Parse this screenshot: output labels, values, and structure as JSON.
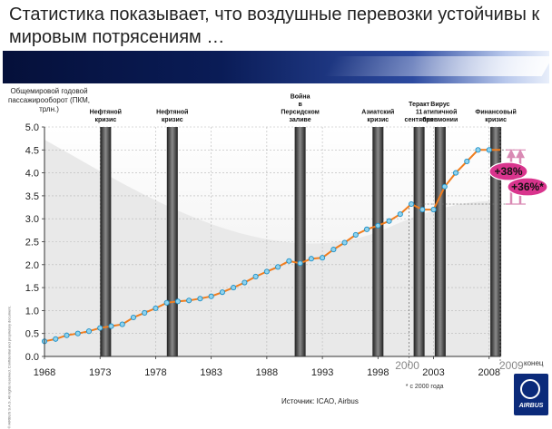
{
  "slide": {
    "title": "Статистика показывает, что воздушные перевозки устойчивы к мировым потрясениям …",
    "source": "Источник: ICAO, Airbus",
    "logo_text": "AIRBUS",
    "legal_text": "© AIRBUS S.A.S. All rights reserved. Confidential and proprietary document."
  },
  "colors": {
    "line": "#f07d1e",
    "marker_fill": "#8fd3ee",
    "marker_edge": "#1e8fc6",
    "bubble": "#d9348d",
    "arrow": "#d98ab4",
    "band_dark": "#2b2b2b",
    "plot_bg": "#e9e9e9"
  },
  "chart_data": {
    "type": "line",
    "ylabel": "Общемировой годовой пассажирооборот (ПКМ, трлн.)",
    "xlim": [
      1968,
      2009
    ],
    "ylim": [
      0,
      5.0
    ],
    "yticks": [
      "0.0",
      "0.5",
      "1.0",
      "1.5",
      "2.0",
      "2.5",
      "3.0",
      "3.5",
      "4.0",
      "4.5",
      "5.0"
    ],
    "xticks": [
      "1968",
      "1973",
      "1978",
      "1983",
      "1988",
      "1993",
      "1998",
      "2003",
      "2008"
    ],
    "grid": true,
    "series": [
      {
        "x": [
          1968,
          1969,
          1970,
          1971,
          1972,
          1973,
          1974,
          1975,
          1976,
          1977,
          1978,
          1979,
          1980,
          1981,
          1982,
          1983,
          1984,
          1985,
          1986,
          1987,
          1988,
          1989,
          1990,
          1991,
          1992,
          1993,
          1994,
          1995,
          1996,
          1997,
          1998,
          1999,
          2000,
          2001,
          2002,
          2003,
          2004,
          2005,
          2006,
          2007,
          2008
        ],
        "y": [
          0.33,
          0.38,
          0.46,
          0.5,
          0.55,
          0.62,
          0.66,
          0.7,
          0.85,
          0.95,
          1.05,
          1.17,
          1.2,
          1.22,
          1.26,
          1.31,
          1.4,
          1.5,
          1.61,
          1.74,
          1.85,
          1.95,
          2.08,
          2.03,
          2.13,
          2.15,
          2.33,
          2.48,
          2.65,
          2.77,
          2.85,
          2.95,
          3.1,
          3.32,
          3.2,
          3.2,
          3.7,
          4.0,
          4.25,
          4.5,
          4.5
        ]
      }
    ],
    "crises": [
      {
        "year": 1973.5,
        "label": "Нефтяной кризис"
      },
      {
        "year": 1979.5,
        "label": "Нефтяной кризис"
      },
      {
        "year": 1991,
        "label": "Война в Персидском заливе"
      },
      {
        "year": 1998,
        "label": "Азиатский кризис"
      },
      {
        "year": 2001.7,
        "label": "Теракт 11 сентября"
      },
      {
        "year": 2003.6,
        "label": "Вирус атипичной пневмонии"
      },
      {
        "year": 2008.6,
        "label": "Финансовый кризис"
      }
    ],
    "annotations": {
      "year_2000": "2000",
      "year_2009": "2009",
      "konets": "конец",
      "footnote": "* с 2000 года",
      "growth_1": "+38%",
      "growth_2": "+36%*",
      "end_2009_value": 4.5
    }
  }
}
